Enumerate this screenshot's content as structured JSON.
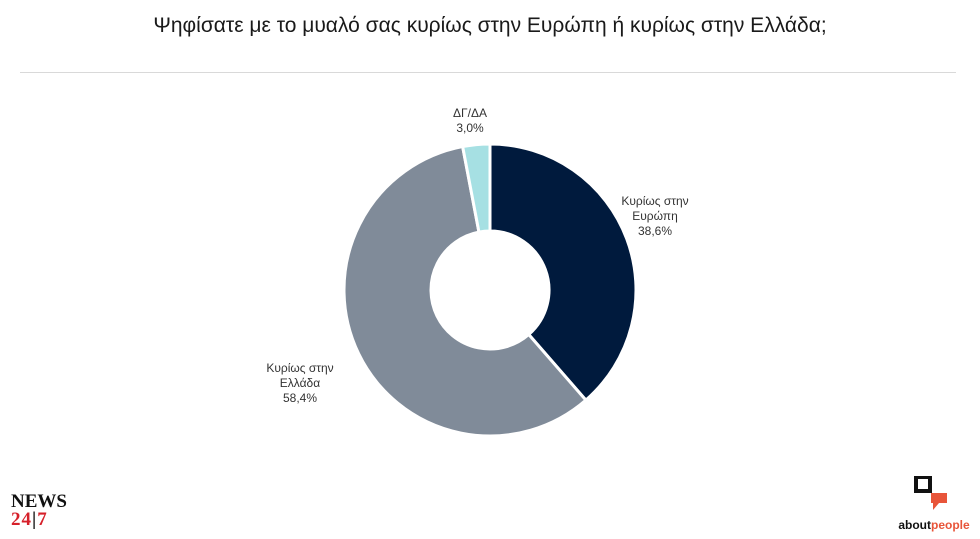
{
  "title": "Ψηφίσατε με το μυαλό σας κυρίως στην Ευρώπη ή κυρίως στην Ελλάδα;",
  "chart_data": {
    "type": "pie",
    "donut": true,
    "slices": [
      {
        "label_lines": [
          "Κυρίως στην",
          "Ευρώπη"
        ],
        "value": 38.6,
        "value_label": "38,6%",
        "color": "#001a3d"
      },
      {
        "label_lines": [
          "Κυρίως στην",
          "Ελλάδα"
        ],
        "value": 58.4,
        "value_label": "58,4%",
        "color": "#808b99"
      },
      {
        "label_lines": [
          "ΔΓ/ΔΑ"
        ],
        "value": 3.0,
        "value_label": "3,0%",
        "color": "#a6e0e3"
      }
    ]
  },
  "logos": {
    "news_line1": "NEWS",
    "news_line2_a": "24",
    "news_line2_sep": "|",
    "news_line2_b": "7",
    "about_a": "about",
    "about_b": "people"
  }
}
